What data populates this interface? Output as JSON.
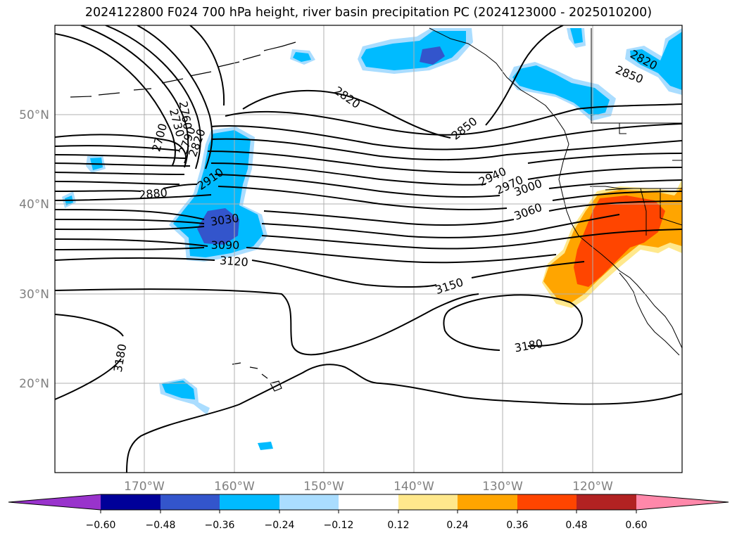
{
  "title": "2024122800 F024 700 hPa height, river basin precipitation PC (2024123000 - 2025010200)",
  "lat_labels": [
    "50°N",
    "40°N",
    "30°N",
    "20°N"
  ],
  "lon_labels": [
    "170°W",
    "160°W",
    "150°W",
    "140°W",
    "130°W",
    "120°W"
  ],
  "contour_labels": {
    "c2700": "2700",
    "c2730": "2730",
    "c2760": "2760",
    "c2790": "2790",
    "c2820a": "2820",
    "c2820b": "2820",
    "c2820c": "2820",
    "c2850a": "2850",
    "c2850b": "2850",
    "c2880": "2880",
    "c2910": "2910",
    "c2940": "2940",
    "c2970": "2970",
    "c3000": "3000",
    "c3030": "3030",
    "c3060": "3060",
    "c3090": "3090",
    "c3120": "3120",
    "c3150": "3150",
    "c3180a": "3180",
    "c3180b": "3180"
  },
  "colorbar": {
    "ticks": [
      "−0.60",
      "−0.48",
      "−0.36",
      "−0.24",
      "−0.12",
      "0.12",
      "0.24",
      "0.36",
      "0.48",
      "0.60"
    ],
    "colors": [
      "#9933cc",
      "#000099",
      "#3355cc",
      "#00bbff",
      "#aaddff",
      "#ffffff",
      "#ffe88c",
      "#ffa500",
      "#ff4500",
      "#b22222",
      "#ff88aa"
    ]
  },
  "fill_colors": {
    "light_blue": "#aaddff",
    "blue": "#00bbff",
    "dark_blue": "#3355cc",
    "yellow": "#ffe88c",
    "orange": "#ffa500",
    "red_orange": "#ff4500"
  }
}
